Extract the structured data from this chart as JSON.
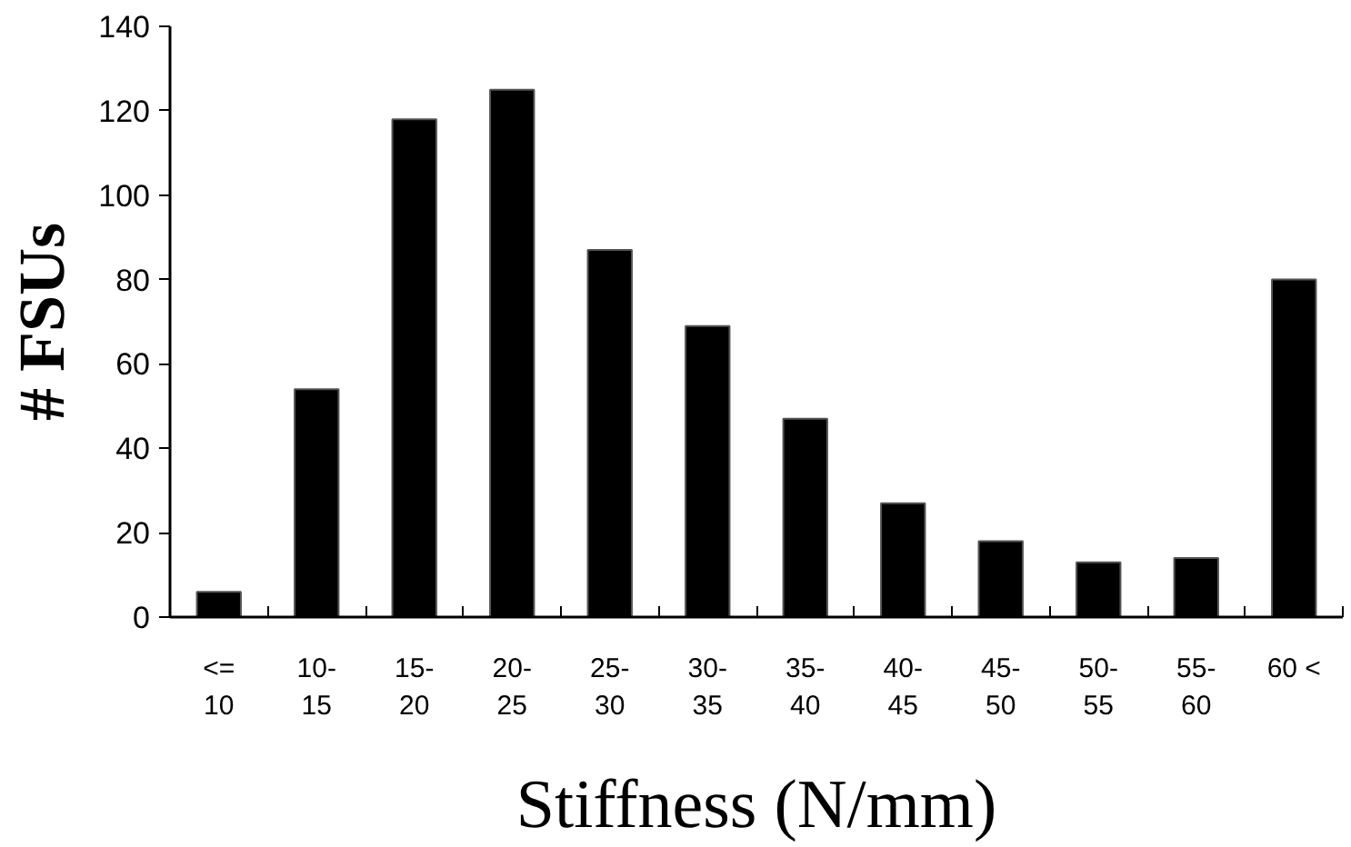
{
  "chart_data": {
    "type": "bar",
    "xlabel": "Stiffness (N/mm)",
    "ylabel": "# FSUs",
    "categories": [
      "<=\n10",
      "10-\n15",
      "15-\n20",
      "20-\n25",
      "25-\n30",
      "30-\n35",
      "35-\n40",
      "40-\n45",
      "45-\n50",
      "50-\n55",
      "55-\n60",
      "60 <"
    ],
    "values": [
      6,
      54,
      118,
      125,
      87,
      69,
      47,
      27,
      18,
      13,
      14,
      80
    ],
    "color": "#000000",
    "ylim": [
      0,
      140
    ],
    "yticks": [
      0,
      20,
      40,
      60,
      80,
      100,
      120,
      140
    ],
    "grid": false
  }
}
